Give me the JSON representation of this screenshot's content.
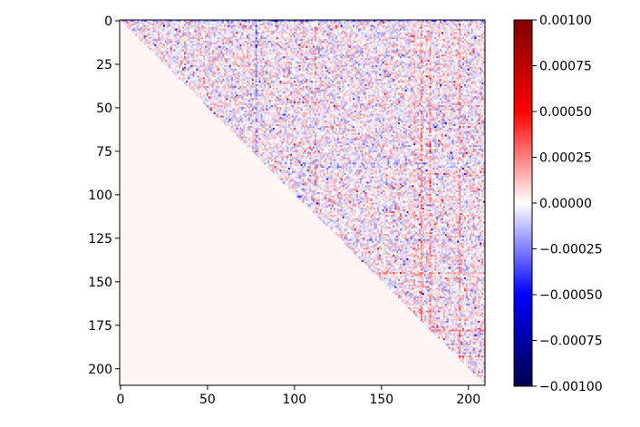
{
  "chart_data": {
    "type": "heatmap",
    "title": "",
    "xlabel": "",
    "ylabel": "",
    "matrix_size": 210,
    "structure": "upper-triangular; cells on or below the diagonal are zero, cells above the diagonal hold small random values mostly within ±0.0003 with occasional values near ±0.0006",
    "x_axis": {
      "range": [
        0,
        210
      ],
      "ticks": [
        0,
        50,
        100,
        150,
        200
      ]
    },
    "y_axis": {
      "range": [
        0,
        210
      ],
      "inverted": true,
      "ticks": [
        0,
        25,
        50,
        75,
        100,
        125,
        150,
        175,
        200
      ]
    },
    "colorbar": {
      "colormap": "seismic",
      "vmin": -0.001,
      "vmax": 0.001,
      "ticks": [
        0.001,
        0.00075,
        0.0005,
        0.00025,
        0.0,
        -0.00025,
        -0.0005,
        -0.00075,
        -0.001
      ],
      "tick_labels": [
        "0.00100",
        "0.00075",
        "0.00050",
        "0.00025",
        "0.00000",
        "−0.00025",
        "−0.00050",
        "−0.00075",
        "−0.00100"
      ],
      "stops": [
        "#00004c",
        "#0000ff",
        "#ffffff",
        "#ff0000",
        "#7f0000"
      ]
    },
    "lower_triangle_color": "#fff5f5",
    "random_seed": 12345
  }
}
